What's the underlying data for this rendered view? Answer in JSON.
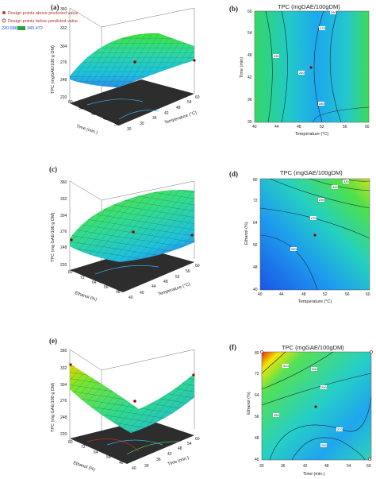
{
  "figure": {
    "legend": {
      "above_text": "Design points above predicted value",
      "below_text": "Design points below predicted value",
      "range_min": "220.688",
      "range_max": "340.472",
      "above_color": "#c0392b",
      "below_color": "#8e1c1c"
    },
    "colors": {
      "low": "#1e6ee6",
      "mid": "#22d3c5",
      "high_mid": "#55e055",
      "high": "#f3e600",
      "peak": "#e0281e"
    }
  },
  "chart_data": [
    {
      "panel": "(a)",
      "type": "surface",
      "title": "",
      "zlabel": "TPC (mgGAE/100 g DM)",
      "xlabel": "Temperature (°C)",
      "ylabel": "Time (min.)",
      "z_ticks": [
        "220",
        "248",
        "276",
        "304",
        "332",
        "360"
      ],
      "x_ticks": [
        "30",
        "36",
        "42",
        "48",
        "54",
        "60"
      ],
      "y_ticks": [
        "30",
        "36",
        "42",
        "48",
        "54",
        "60"
      ],
      "zlim": [
        220,
        360
      ]
    },
    {
      "panel": "(b)",
      "type": "contour",
      "title": "TPC (mgGAE/100gDM)",
      "xlabel": "Temperature (°C)",
      "ylabel": "Time (min)",
      "x_ticks": [
        "40",
        "44",
        "48",
        "52",
        "56",
        "60"
      ],
      "y_ticks": [
        "30",
        "36",
        "42",
        "48",
        "54",
        "60"
      ],
      "contour_labels": [
        "250",
        "260",
        "270",
        "280",
        "290"
      ],
      "design_point": [
        51,
        44
      ]
    },
    {
      "panel": "(c)",
      "type": "surface",
      "title": "",
      "zlabel": "TPC (mg GAE/100 g DM)",
      "xlabel": "Temperature (°C)",
      "ylabel": "Ethanol (%)",
      "z_ticks": [
        "220",
        "248",
        "276",
        "304",
        "332",
        "360"
      ],
      "x_ticks": [
        "40",
        "44",
        "48",
        "52",
        "56",
        "60"
      ],
      "y_ticks": [
        "40",
        "48",
        "56",
        "64",
        "72",
        "80"
      ],
      "zlim": [
        220,
        360
      ]
    },
    {
      "panel": "(d)",
      "type": "contour",
      "title": "TPC (mgGAE/100gDM)",
      "xlabel": "Temperature (°C)",
      "ylabel": "Ethanol (%)",
      "x_ticks": [
        "40",
        "44",
        "48",
        "52",
        "56",
        "60"
      ],
      "y_ticks": [
        "40",
        "48",
        "56",
        "64",
        "72",
        "80"
      ],
      "contour_labels": [
        "250",
        "270",
        "290",
        "310",
        "330"
      ],
      "design_point": [
        51,
        60
      ]
    },
    {
      "panel": "(e)",
      "type": "surface",
      "title": "",
      "zlabel": "TPC (mg GAE/100 g DM)",
      "xlabel": "Time (min.)",
      "ylabel": "Ethanol (%)",
      "z_ticks": [
        "220",
        "248",
        "276",
        "304",
        "332",
        "360"
      ],
      "x_ticks": [
        "30",
        "36",
        "42",
        "48",
        "54",
        "60"
      ],
      "y_ticks": [
        "40",
        "48",
        "56",
        "64",
        "72",
        "80"
      ],
      "zlim": [
        220,
        360
      ]
    },
    {
      "panel": "(f)",
      "type": "contour",
      "title": "TPC (mgGAE/100gDM)",
      "xlabel": "Time (min.)",
      "ylabel": "Ethanol (%)",
      "x_ticks": [
        "30",
        "36",
        "42",
        "48",
        "54",
        "60"
      ],
      "y_ticks": [
        "40",
        "48",
        "56",
        "64",
        "72",
        "80"
      ],
      "contour_labels": [
        "260",
        "270",
        "280",
        "290",
        "300",
        "310"
      ],
      "design_point": [
        45,
        60
      ]
    }
  ]
}
